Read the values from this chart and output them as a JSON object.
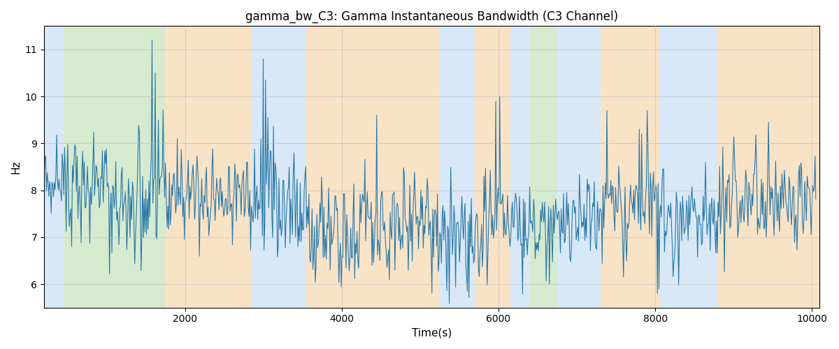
{
  "title": "gamma_bw_C3: Gamma Instantaneous Bandwidth (C3 Channel)",
  "xlabel": "Time(s)",
  "ylabel": "Hz",
  "xlim": [
    200,
    10100
  ],
  "ylim": [
    5.5,
    11.5
  ],
  "yticks": [
    6,
    7,
    8,
    9,
    10,
    11
  ],
  "xticks": [
    2000,
    4000,
    6000,
    8000,
    10000
  ],
  "line_color": "#2878a8",
  "line_width": 0.8,
  "background_color": "#ffffff",
  "grid_color": "#bbbbbb",
  "bands": [
    {
      "xmin": 200,
      "xmax": 450,
      "color": "#aaccee",
      "alpha": 0.45
    },
    {
      "xmin": 450,
      "xmax": 1750,
      "color": "#99cc88",
      "alpha": 0.4
    },
    {
      "xmin": 1750,
      "xmax": 2850,
      "color": "#f5c890",
      "alpha": 0.5
    },
    {
      "xmin": 2850,
      "xmax": 3550,
      "color": "#aaccee",
      "alpha": 0.45
    },
    {
      "xmin": 3550,
      "xmax": 5250,
      "color": "#f5c890",
      "alpha": 0.5
    },
    {
      "xmin": 5250,
      "xmax": 5700,
      "color": "#aaccee",
      "alpha": 0.45
    },
    {
      "xmin": 5700,
      "xmax": 6150,
      "color": "#f5c890",
      "alpha": 0.5
    },
    {
      "xmin": 6150,
      "xmax": 6400,
      "color": "#aaccee",
      "alpha": 0.45
    },
    {
      "xmin": 6400,
      "xmax": 6750,
      "color": "#99cc88",
      "alpha": 0.4
    },
    {
      "xmin": 6750,
      "xmax": 7300,
      "color": "#aaccee",
      "alpha": 0.45
    },
    {
      "xmin": 7300,
      "xmax": 8050,
      "color": "#f5c890",
      "alpha": 0.5
    },
    {
      "xmin": 8050,
      "xmax": 8800,
      "color": "#aaccee",
      "alpha": 0.45
    },
    {
      "xmin": 8800,
      "xmax": 10100,
      "color": "#f5c890",
      "alpha": 0.5
    }
  ],
  "seed": 12345,
  "n_points": 980,
  "x_start": 200,
  "x_end": 10050
}
